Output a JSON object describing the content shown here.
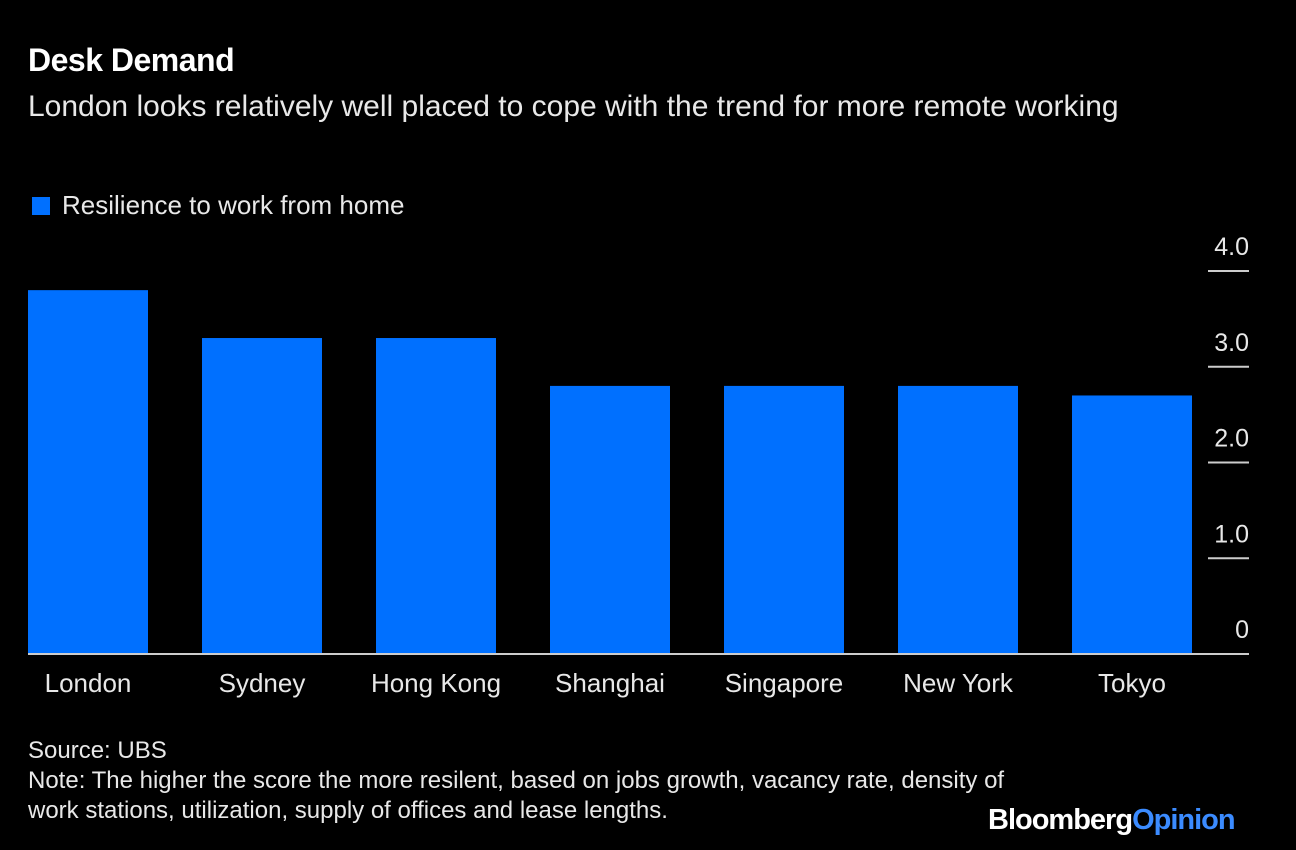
{
  "chart_data": {
    "type": "bar",
    "title": "Desk Demand",
    "subtitle": "London looks relatively well placed to cope with the trend for more remote working",
    "categories": [
      "London",
      "Sydney",
      "Hong Kong",
      "Shanghai",
      "Singapore",
      "New York",
      "Tokyo"
    ],
    "series": [
      {
        "name": "Resilience to work from home",
        "values": [
          3.8,
          3.3,
          3.3,
          2.8,
          2.8,
          2.8,
          2.7
        ],
        "color": "#0070ff"
      }
    ],
    "ylim": [
      0,
      4
    ],
    "yticks": [
      0,
      1,
      2,
      3,
      4
    ],
    "ytick_labels": [
      "0",
      "1.0",
      "2.0",
      "3.0",
      "4.0"
    ],
    "yaxis_position": "right",
    "legend_position": "top-left",
    "xlabel": "",
    "ylabel": ""
  },
  "footer": {
    "source": "Source: UBS",
    "note": "Note: The higher the score the more resilent, based on jobs growth, vacancy rate, density of work stations, utilization, supply of offices and lease lengths.",
    "logo_brand": "Bloomberg",
    "logo_opinion": "Opinion"
  }
}
